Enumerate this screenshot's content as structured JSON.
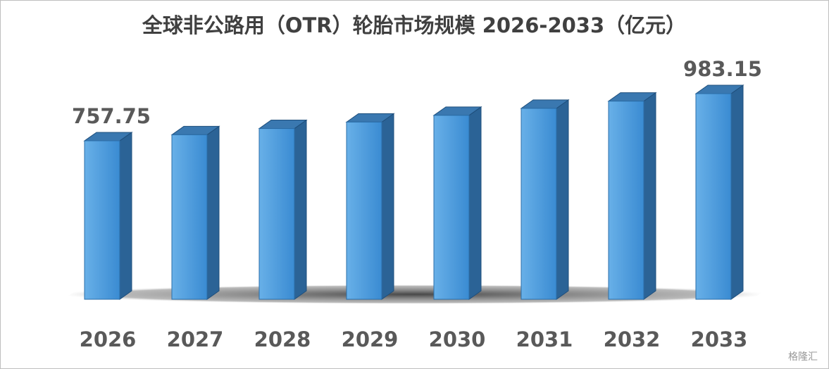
{
  "chart_data": {
    "type": "bar3d",
    "title": "全球非公路用（OTR）轮胎市场规模 2026-2033（亿元）",
    "categories": [
      "2026",
      "2027",
      "2028",
      "2029",
      "2030",
      "2031",
      "2032",
      "2033"
    ],
    "values": [
      757.75,
      786.5,
      816.3,
      847.3,
      879.4,
      912.8,
      947.4,
      983.15
    ],
    "color": "#4a98db"
  },
  "watermark": "格隆汇"
}
